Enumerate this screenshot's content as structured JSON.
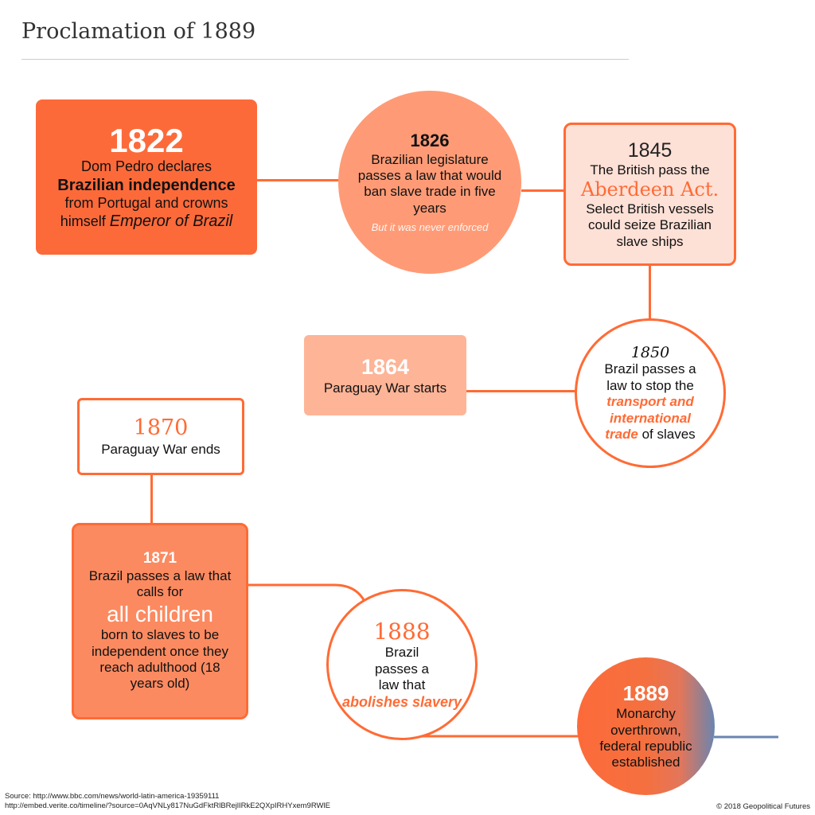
{
  "title": "Proclamation of 1889",
  "colors": {
    "accent": "#ff6b35",
    "light": "#fe9b76",
    "pale": "#fde0d6",
    "peach": "#feb497",
    "mid": "#fc8a60",
    "republic": "#6a85b0"
  },
  "events": {
    "e1822": {
      "year": "1822",
      "l1": "Dom Pedro declares",
      "l2": "Brazilian independence",
      "l3": "from Portugal and crowns",
      "l4a": "himself ",
      "l4b": "Emperor of Brazil"
    },
    "e1826": {
      "year": "1826",
      "body": "Brazilian legislature passes a law that would ban slave trade in five years",
      "note": "But it was never enforced"
    },
    "e1845": {
      "year": "1845",
      "l1": "The British pass the",
      "act": "Aberdeen Act.",
      "body": "Select British vessels could seize Brazilian slave ships"
    },
    "e1850": {
      "year": "1850",
      "l1": "Brazil passes a law to stop the",
      "hl": "transport and international trade",
      "l2": " of slaves"
    },
    "e1864": {
      "year": "1864",
      "body": "Paraguay War starts"
    },
    "e1870": {
      "year": "1870",
      "body": "Paraguay War ends"
    },
    "e1871": {
      "year": "1871",
      "l1": "Brazil passes a law that calls for",
      "hl": "all children",
      "l2": "born to slaves to be independent once they reach adulthood (18 years old)"
    },
    "e1888": {
      "year": "1888",
      "l1": "Brazil passes a law that",
      "hl": "abolishes slavery"
    },
    "e1889": {
      "year": "1889",
      "body": "Monarchy overthrown, federal republic established"
    }
  },
  "footer": {
    "source1": "Source: http://www.bbc.com/news/world-latin-america-19359111",
    "source2": "http://embed.verite.co/timeline/?source=0AqVNLy817NuGdFktRlBRejlIRkE2QXpIRHYxem9RWlE",
    "copyright": "© 2018 Geopolitical Futures"
  }
}
